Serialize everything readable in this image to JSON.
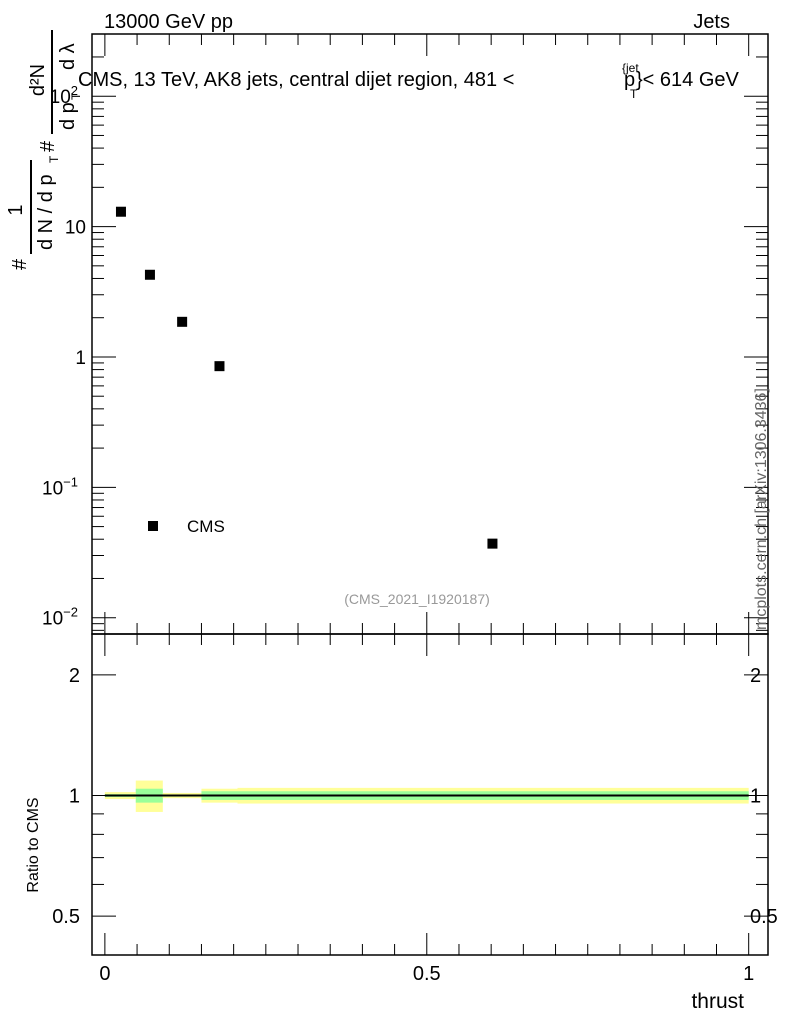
{
  "header": {
    "left": "13000 GeV pp",
    "right": "Jets"
  },
  "side_label": "mcplots.cern.ch [arXiv:1306.3436]",
  "watermark": "(CMS_2021_I1920187)",
  "chart_data": [
    {
      "type": "scatter",
      "title": "CMS, 13 TeV, AK8 jets, central dijet region, 481 <",
      "title_ptjet": "p",
      "title_sub": "T",
      "title_sup": "{jet",
      "title_end": "}< 614 GeV",
      "ylabel": {
        "num1": "1",
        "den1": "d N / d p",
        "den1_sub": "T",
        "num2": "d²N",
        "den2": "d p",
        "den2_sub": "T",
        "den2_end": "d λ",
        "hash": "#"
      },
      "xlabel": "thrust",
      "yscale": "log",
      "xlim": [
        -0.02,
        1.03
      ],
      "ylim": [
        0.0075,
        300
      ],
      "yticks": [
        {
          "v": 100,
          "label": "10",
          "sup": "2"
        },
        {
          "v": 10,
          "label": "10",
          "sup": ""
        },
        {
          "v": 1,
          "label": "1",
          "sup": ""
        },
        {
          "v": 0.1,
          "label": "10",
          "sup": "−1"
        },
        {
          "v": 0.01,
          "label": "10",
          "sup": "−2"
        }
      ],
      "series": [
        {
          "name": "CMS",
          "x": [
            0.025,
            0.07,
            0.12,
            0.178,
            0.602
          ],
          "y": [
            13.0,
            4.27,
            1.86,
            0.85,
            0.037
          ]
        }
      ],
      "legend": {
        "position": "bottom-left",
        "entries": [
          "CMS"
        ]
      }
    },
    {
      "type": "area",
      "ylabel": "Ratio to CMS",
      "xlabel": "thrust",
      "yscale": "log",
      "xlim": [
        -0.02,
        1.03
      ],
      "ylim": [
        0.4,
        2.53
      ],
      "yticks": [
        {
          "v": 2,
          "label": "2"
        },
        {
          "v": 1,
          "label": "1"
        },
        {
          "v": 0.5,
          "label": "0.5"
        }
      ],
      "xticks": [
        {
          "v": 0,
          "label": "0"
        },
        {
          "v": 0.5,
          "label": "0.5"
        },
        {
          "v": 1,
          "label": "1"
        }
      ],
      "bins": [
        [
          0,
          0.048
        ],
        [
          0.048,
          0.09
        ],
        [
          0.09,
          0.15
        ],
        [
          0.15,
          0.206
        ],
        [
          0.206,
          1.0
        ]
      ],
      "band_yellow": [
        0.02,
        0.09,
        0.015,
        0.04,
        0.045
      ],
      "band_green": [
        0.008,
        0.04,
        0.006,
        0.025,
        0.025
      ],
      "colors": {
        "yellow": "#ffff99",
        "green": "#99ff99",
        "line": "#000000"
      }
    }
  ]
}
